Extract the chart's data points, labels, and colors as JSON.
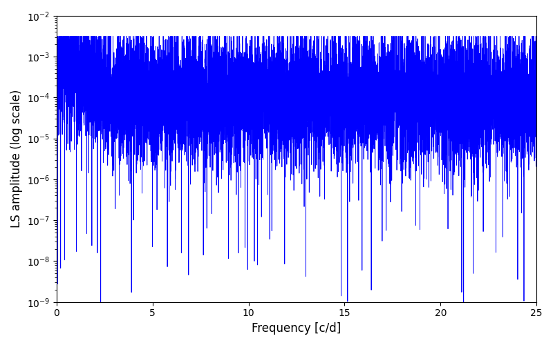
{
  "title": "",
  "xlabel": "Frequency [c/d]",
  "ylabel": "LS amplitude (log scale)",
  "xlim": [
    0,
    25
  ],
  "ylim": [
    1e-09,
    0.01
  ],
  "line_color": "blue",
  "line_width": 0.6,
  "figsize": [
    8.0,
    5.0
  ],
  "dpi": 100,
  "freq_max": 25.0,
  "n_points": 10000,
  "seed": 12345,
  "background_color": "#ffffff",
  "base_log": -4.0,
  "noise_std": 0.8,
  "low_freq_boost": 1.0,
  "low_freq_cutoff": 3.0
}
